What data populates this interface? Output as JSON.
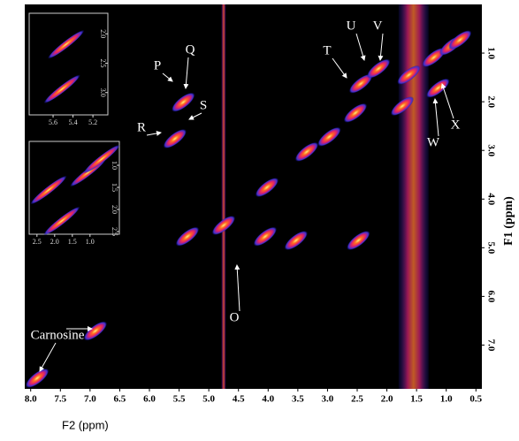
{
  "chart_data": [
    {
      "type": "contour",
      "xlabel": "F2 (ppm)",
      "ylabel": "F1 (ppm)",
      "xlim": [
        8.1,
        0.4
      ],
      "ylim": [
        0.0,
        7.9
      ],
      "xticks": [
        {
          "value": 8,
          "label": "8.0"
        },
        7.5,
        {
          "value": 7,
          "label": "7.0"
        },
        6.5,
        {
          "value": 6,
          "label": "6.0"
        },
        5.5,
        {
          "value": 5,
          "label": "5.0"
        },
        4.5,
        {
          "value": 4,
          "label": "4.0"
        },
        3.5,
        {
          "value": 3,
          "label": "3.0"
        },
        2.5,
        {
          "value": 2,
          "label": "2.0"
        },
        1.5,
        {
          "value": 1,
          "label": "1.0"
        },
        0.5
      ],
      "yticks": [
        {
          "value": 1,
          "label": "1.0"
        },
        {
          "value": 2,
          "label": "2.0"
        },
        {
          "value": 3,
          "label": "3.0"
        },
        {
          "value": 4,
          "label": "4.0"
        },
        {
          "value": 5,
          "label": "5.0"
        },
        {
          "value": 6,
          "label": "6.0"
        },
        {
          "value": 7,
          "label": "7.0"
        }
      ],
      "x": [
        7.89,
        6.91,
        5.43,
        5.57,
        5.36,
        4.75,
        4.02,
        3.35,
        2.97,
        2.53,
        2.44,
        2.14,
        1.63,
        1.21,
        0.92,
        1.14,
        1.74,
        3.53,
        2.48,
        4.05,
        0.77
      ],
      "y": [
        7.68,
        6.71,
        2.01,
        2.76,
        4.77,
        4.54,
        3.76,
        3.03,
        2.72,
        2.23,
        1.63,
        1.32,
        1.45,
        1.09,
        0.85,
        1.72,
        2.09,
        4.85,
        4.85,
        4.77,
        0.73
      ],
      "ridges": [
        4.75,
        1.55
      ],
      "annotations": [
        "P",
        "Q",
        "R",
        "S",
        "T",
        "U",
        "V",
        "W",
        "X",
        "O",
        "Carnosine"
      ]
    },
    {
      "type": "contour",
      "xlim": [
        5.84,
        5.05
      ],
      "ylim": [
        1.65,
        3.38
      ],
      "xticks": [
        5.6,
        5.4,
        5.2
      ],
      "yticks": [
        {
          "value": 2,
          "label": "2.0"
        },
        2.5,
        {
          "value": 3,
          "label": "3.0"
        }
      ],
      "x": [
        5.47,
        5.51
      ],
      "y": [
        2.18,
        2.94
      ]
    },
    {
      "type": "contour",
      "xlim": [
        2.72,
        0.17
      ],
      "ylim": [
        0.46,
        2.56
      ],
      "xticks": [
        2.5,
        {
          "value": 2,
          "label": "2.0"
        },
        1.5,
        {
          "value": 1,
          "label": "1.0"
        }
      ],
      "yticks": [
        {
          "value": 1,
          "label": "1.0"
        },
        1.5,
        {
          "value": 2,
          "label": "2.0"
        },
        2.5
      ],
      "x": [
        1.05,
        1.8,
        2.17,
        0.67
      ],
      "y": [
        1.16,
        2.26,
        1.56,
        0.86
      ]
    }
  ]
}
